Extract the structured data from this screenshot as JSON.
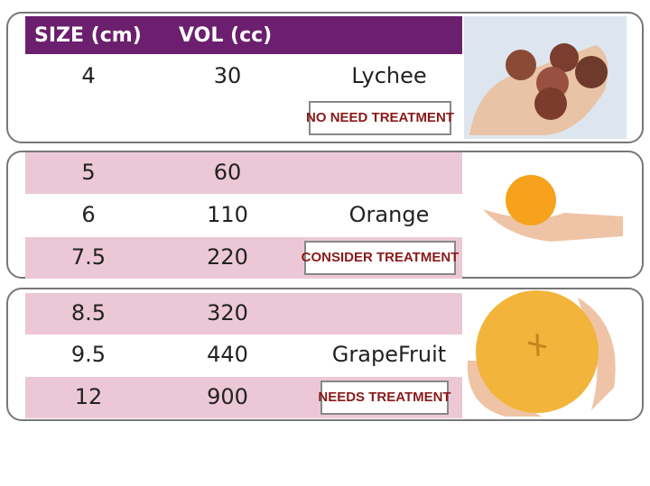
{
  "header": {
    "size": "SIZE (cm)",
    "volume": "VOL (cc)"
  },
  "groups": [
    {
      "rows": [
        [
          4,
          30
        ]
      ],
      "fruit": "Lychee",
      "treatment": "NO NEED TREATMENT"
    },
    {
      "rows": [
        [
          5,
          60
        ],
        [
          6,
          110
        ],
        [
          7.5,
          220
        ]
      ],
      "fruit": "Orange",
      "treatment": "CONSIDER TREATMENT"
    },
    {
      "rows": [
        [
          8.5,
          320
        ],
        [
          9.5,
          440
        ],
        [
          12,
          900
        ]
      ],
      "fruit": "GrapeFruit",
      "treatment": "NEEDS TREATMENT"
    }
  ]
}
